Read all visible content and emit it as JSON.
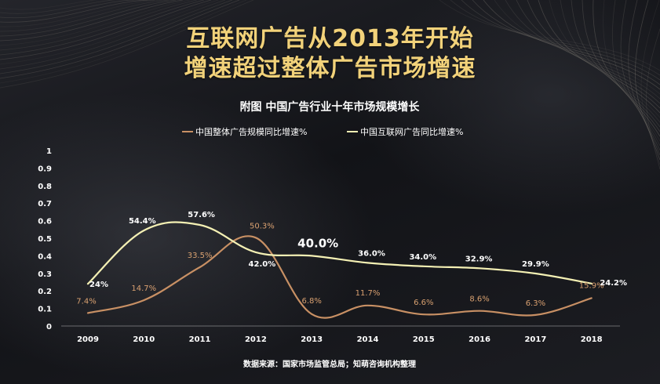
{
  "title": {
    "line1": "互联网广告从2013年开始",
    "line2": "增速超过整体广告市场增速"
  },
  "source_note": "数据来源：国家市场监管总局；知萌咨询机构整理",
  "colors": {
    "title": "#f2d27a",
    "total_series": "#c89064",
    "total_label": "#d8a070",
    "internet_series": "#f4f0b4",
    "internet_label": "#ffffff"
  },
  "chart_data": {
    "type": "line",
    "title": "附图  中国广告行业十年市场规模增长",
    "xlabel": "",
    "ylabel": "",
    "categories": [
      "2009",
      "2010",
      "2011",
      "2012",
      "2013",
      "2014",
      "2015",
      "2016",
      "2017",
      "2018"
    ],
    "ylim": [
      0,
      1
    ],
    "yticks": [
      {
        "value": 0,
        "label": "0"
      },
      {
        "value": 0.1,
        "label": "0.1"
      },
      {
        "value": 0.2,
        "label": "0.2"
      },
      {
        "value": 0.3,
        "label": "0.3"
      },
      {
        "value": 0.4,
        "label": "0.4"
      },
      {
        "value": 0.5,
        "label": "0.5"
      },
      {
        "value": 0.6,
        "label": "0.6"
      },
      {
        "value": 0.7,
        "label": "0.7"
      },
      {
        "value": 0.8,
        "label": "0.8"
      },
      {
        "value": 0.9,
        "label": "0.9"
      },
      {
        "value": 1,
        "label": "1"
      }
    ],
    "grid": false,
    "legend_position": "top",
    "series": [
      {
        "name": "中国整体广告规模同比增速%",
        "color": "#c89064",
        "values": [
          0.074,
          0.147,
          0.335,
          0.503,
          0.068,
          0.117,
          0.066,
          0.086,
          0.063,
          0.159
        ],
        "labels": [
          "7.4%",
          "14.7%",
          "33.5%",
          "50.3%",
          "6.8%",
          "11.7%",
          "6.6%",
          "8.6%",
          "6.3%",
          "15.9%"
        ]
      },
      {
        "name": "中国互联网广告同比增速%",
        "color": "#f4f0b4",
        "values": [
          0.24,
          0.544,
          0.576,
          0.42,
          0.4,
          0.36,
          0.34,
          0.329,
          0.299,
          0.242
        ],
        "labels": [
          "24%",
          "54.4%",
          "57.6%",
          "42.0%",
          "40.0%",
          "36.0%",
          "34.0%",
          "32.9%",
          "29.9%",
          "24.2%"
        ]
      }
    ]
  }
}
